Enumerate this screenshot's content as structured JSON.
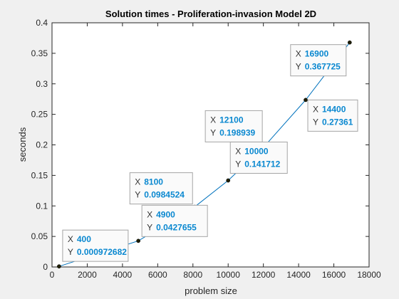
{
  "chart_data": {
    "type": "line",
    "title": "Solution times - Proliferation-invasion Model 2D",
    "xlabel": "problem size",
    "ylabel": "seconds",
    "xlim": [
      0,
      18000
    ],
    "ylim": [
      0,
      0.4
    ],
    "xticks": [
      0,
      2000,
      4000,
      6000,
      8000,
      10000,
      12000,
      14000,
      16000,
      18000
    ],
    "yticks": [
      0,
      0.05,
      0.1,
      0.15,
      0.2,
      0.25,
      0.3,
      0.35,
      0.4
    ],
    "xtick_labels": [
      "0",
      "2000",
      "4000",
      "6000",
      "8000",
      "10000",
      "12000",
      "14000",
      "16000",
      "18000"
    ],
    "ytick_labels": [
      "0",
      "0.05",
      "0.1",
      "0.15",
      "0.2",
      "0.25",
      "0.3",
      "0.35",
      "0.4"
    ],
    "grid": false,
    "series": [
      {
        "color": "#0072bd",
        "marker_color": "#1e1e00",
        "x": [
          400,
          4900,
          8100,
          10000,
          12100,
          14400,
          16900
        ],
        "y": [
          0.000972682,
          0.0427655,
          0.0984524,
          0.141712,
          0.198939,
          0.27361,
          0.367725
        ]
      }
    ],
    "annotations": [
      {
        "x_key": "X",
        "y_key": "Y",
        "x_text": "400",
        "y_text": "0.000972682",
        "x": 400,
        "y": 0.000972682
      },
      {
        "x_key": "X",
        "y_key": "Y",
        "x_text": "4900",
        "y_text": "0.0427655",
        "x": 4900,
        "y": 0.0427655
      },
      {
        "x_key": "X",
        "y_key": "Y",
        "x_text": "8100",
        "y_text": "0.0984524",
        "x": 8100,
        "y": 0.0984524
      },
      {
        "x_key": "X",
        "y_key": "Y",
        "x_text": "10000",
        "y_text": "0.141712",
        "x": 10000,
        "y": 0.141712
      },
      {
        "x_key": "X",
        "y_key": "Y",
        "x_text": "12100",
        "y_text": "0.198939",
        "x": 12100,
        "y": 0.198939
      },
      {
        "x_key": "X",
        "y_key": "Y",
        "x_text": "14400",
        "y_text": "0.27361",
        "x": 14400,
        "y": 0.27361
      },
      {
        "x_key": "X",
        "y_key": "Y",
        "x_text": "16900",
        "y_text": "0.367725",
        "x": 16900,
        "y": 0.367725
      }
    ]
  }
}
